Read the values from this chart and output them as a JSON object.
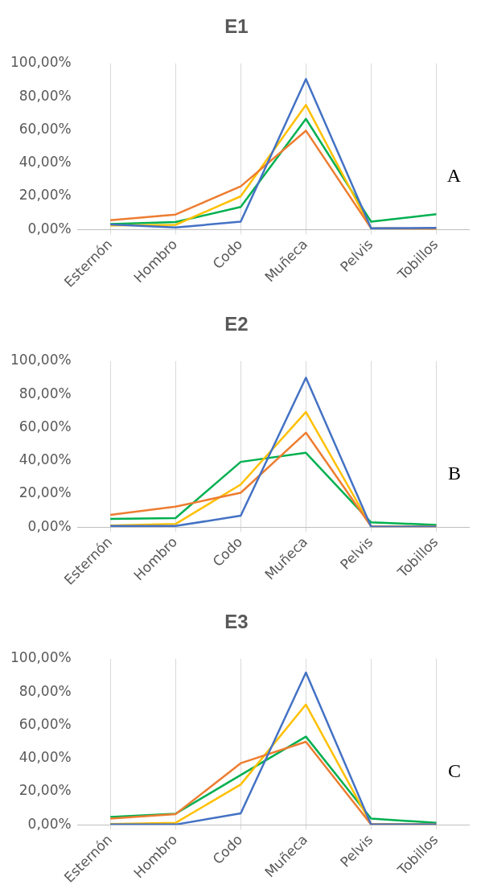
{
  "chart_data": [
    {
      "type": "line",
      "title": "E1",
      "categories": [
        "Esternón",
        "Hombro",
        "Codo",
        "Muñeca",
        "Pelvis",
        "Tobillos"
      ],
      "ylim": [
        0,
        100
      ],
      "yticks": [
        {
          "value": 0,
          "label": "0,00%"
        },
        {
          "value": 20,
          "label": "20,00%"
        },
        {
          "value": 40,
          "label": "40,00%"
        },
        {
          "value": 60,
          "label": "60,00%"
        },
        {
          "value": 80,
          "label": "80,00%"
        },
        {
          "value": 100,
          "label": "100,00%"
        }
      ],
      "grid": "x",
      "legend": false,
      "marker": "none",
      "annotations": [
        "A"
      ],
      "series": [
        {
          "color": "#4472c4",
          "values": [
            3,
            1.2,
            4.7,
            90.6,
            0.7,
            1
          ]
        },
        {
          "color": "#ed7d31",
          "values": [
            5.6,
            9,
            26,
            59.5,
            0.7,
            0.3
          ]
        },
        {
          "color": "#ffc000",
          "values": [
            2.4,
            2.8,
            20,
            75,
            0.7,
            0.3
          ]
        },
        {
          "color": "#00b050",
          "values": [
            3.3,
            4.5,
            13.6,
            66.6,
            4.7,
            9.2
          ]
        }
      ]
    },
    {
      "type": "line",
      "title": "E2",
      "categories": [
        "Esternón",
        "Hombro",
        "Codo",
        "Muñeca",
        "Pelvis",
        "Tobillos"
      ],
      "ylim": [
        0,
        100
      ],
      "yticks": [
        {
          "value": 0,
          "label": "0,00%"
        },
        {
          "value": 20,
          "label": "20,00%"
        },
        {
          "value": 40,
          "label": "40,00%"
        },
        {
          "value": 60,
          "label": "60,00%"
        },
        {
          "value": 80,
          "label": "80,00%"
        },
        {
          "value": 100,
          "label": "100,00%"
        }
      ],
      "grid": "x",
      "legend": false,
      "marker": "none",
      "annotations": [
        "B"
      ],
      "series": [
        {
          "color": "#4472c4",
          "values": [
            0.7,
            0.7,
            6.9,
            90,
            0.2,
            0.2
          ]
        },
        {
          "color": "#ed7d31",
          "values": [
            7.4,
            12.4,
            20.7,
            56.9,
            0.5,
            0.2
          ]
        },
        {
          "color": "#ffc000",
          "values": [
            1,
            1.9,
            25.7,
            69.3,
            0.5,
            0.2
          ]
        },
        {
          "color": "#00b050",
          "values": [
            5,
            5.5,
            39.3,
            44.8,
            2.9,
            1.4
          ]
        }
      ]
    },
    {
      "type": "line",
      "title": "E3",
      "categories": [
        "Esternón",
        "Hombro",
        "Codo",
        "Muñeca",
        "Pelvis",
        "Tobillos"
      ],
      "ylim": [
        0,
        100
      ],
      "yticks": [
        {
          "value": 0,
          "label": "0,00%"
        },
        {
          "value": 20,
          "label": "20,00%"
        },
        {
          "value": 40,
          "label": "40,00%"
        },
        {
          "value": 60,
          "label": "60,00%"
        },
        {
          "value": 80,
          "label": "80,00%"
        },
        {
          "value": 100,
          "label": "100,00%"
        }
      ],
      "grid": "x",
      "legend": false,
      "marker": "none",
      "annotations": [
        "C"
      ],
      "series": [
        {
          "color": "#4472c4",
          "values": [
            0.2,
            0.2,
            6.9,
            91.7,
            0.2,
            0.2
          ]
        },
        {
          "color": "#ed7d31",
          "values": [
            3.8,
            6.4,
            37.1,
            50,
            0.2,
            0.2
          ]
        },
        {
          "color": "#ffc000",
          "values": [
            0.5,
            1.2,
            24.3,
            72.4,
            0.5,
            0.2
          ]
        },
        {
          "color": "#00b050",
          "values": [
            4.8,
            6.7,
            30,
            53.1,
            3.8,
            1.2
          ]
        }
      ]
    }
  ]
}
